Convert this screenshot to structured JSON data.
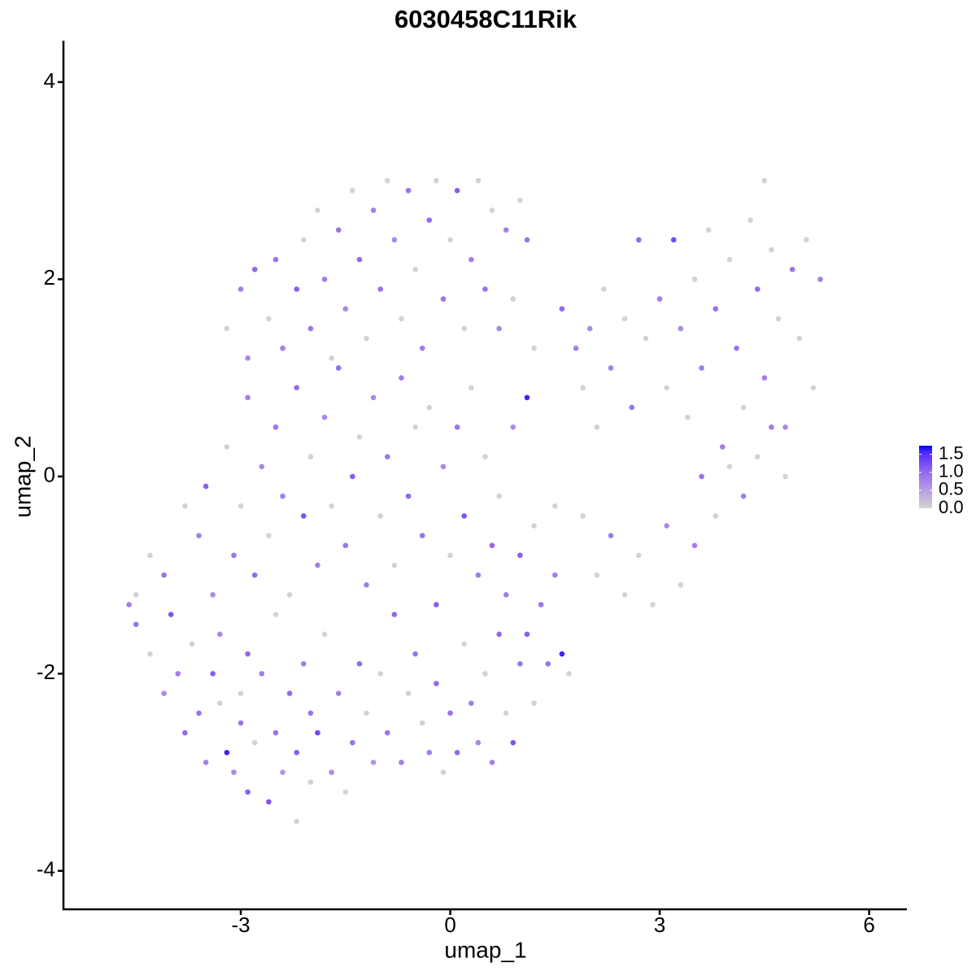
{
  "chart_data": {
    "type": "scatter",
    "title": "6030458C11Rik",
    "x_label": "umap_1",
    "y_label": "umap_2",
    "xlim": [
      -5.54,
      6.54
    ],
    "ylim": [
      -4.39,
      4.42
    ],
    "xticks": [
      -3,
      0,
      3,
      6
    ],
    "yticks": [
      -4,
      -2,
      0,
      2,
      4
    ],
    "grid": false,
    "color_scale": {
      "low": "#d3d3d3",
      "high": "#0000ff",
      "lim": [
        0,
        1.74
      ],
      "ticks": [
        {
          "value": 0,
          "label": "0.0"
        },
        0.5,
        {
          "value": 1,
          "label": "1.0"
        },
        1.5
      ]
    },
    "x": [
      -4.6,
      -4.5,
      -4.5,
      -4.3,
      -4.1,
      -4.0,
      -3.9,
      -3.8,
      -3.7,
      -3.6,
      -3.5,
      -3.4,
      -3.3,
      -3.3,
      -3.2,
      -3.1,
      -3.0,
      -3.0,
      -2.9,
      -2.9,
      -2.8,
      -2.7,
      -2.6,
      -2.5,
      -2.5,
      -2.4,
      -2.3,
      -2.2,
      -2.2,
      -2.1,
      -2.0,
      -2.0,
      -1.9,
      -1.8,
      -1.7,
      -1.6,
      -1.5,
      -1.4,
      -1.3,
      -1.2,
      -1.1,
      -1.0,
      -0.9,
      -0.8,
      -0.7,
      -0.6,
      -0.5,
      -0.4,
      -0.3,
      -0.2,
      -0.1,
      0.0,
      0.1,
      0.2,
      0.3,
      0.4,
      0.5,
      0.6,
      0.7,
      0.8,
      0.9,
      1.0,
      1.1,
      1.2,
      1.4,
      1.6,
      1.7,
      -4.3,
      -4.1,
      -3.8,
      -3.6,
      -3.5,
      -3.4,
      -3.2,
      -3.1,
      -3.0,
      -2.9,
      -2.8,
      -2.7,
      -2.6,
      -2.5,
      -2.4,
      -2.3,
      -2.2,
      -2.1,
      -2.0,
      -1.9,
      -1.8,
      -1.7,
      -1.6,
      -1.5,
      -1.4,
      -1.3,
      -1.2,
      -1.1,
      -1.0,
      -0.9,
      -0.8,
      -0.7,
      -0.6,
      -0.5,
      -0.4,
      -0.3,
      -0.2,
      -0.1,
      0.0,
      0.1,
      0.2,
      0.3,
      0.4,
      0.5,
      0.6,
      0.7,
      0.8,
      0.9,
      1.0,
      1.1,
      1.2,
      1.3,
      1.5,
      1.5,
      -3.2,
      -3.0,
      -2.9,
      -2.8,
      -2.6,
      -2.5,
      -2.4,
      -2.2,
      -2.1,
      -2.0,
      -1.9,
      -1.8,
      -1.7,
      -1.6,
      -1.5,
      -1.4,
      -1.3,
      -1.2,
      -1.1,
      -1.0,
      -0.9,
      -0.8,
      -0.7,
      -0.6,
      -0.5,
      -0.4,
      -0.3,
      -0.2,
      -0.1,
      0.0,
      0.1,
      0.2,
      0.3,
      0.4,
      0.5,
      0.6,
      0.7,
      0.8,
      0.9,
      1.0,
      1.1,
      1.2,
      1.6,
      1.8,
      1.9,
      2.0,
      2.1,
      2.2,
      2.3,
      2.5,
      2.6,
      2.7,
      2.8,
      3.0,
      3.1,
      3.2,
      3.3,
      3.4,
      3.5,
      3.6,
      3.7,
      3.8,
      3.9,
      4.0,
      4.1,
      4.2,
      4.3,
      4.4,
      4.5,
      4.5,
      4.6,
      4.7,
      4.8,
      4.9,
      5.0,
      5.1,
      5.2,
      5.3,
      1.9,
      2.1,
      2.3,
      2.5,
      2.7,
      2.9,
      3.1,
      3.3,
      3.5,
      3.6,
      3.8,
      4.0,
      4.2,
      4.4,
      4.6,
      4.8
    ],
    "y": [
      -1.3,
      -1.5,
      -1.2,
      -1.8,
      -2.2,
      -1.4,
      -2.0,
      -2.6,
      -1.7,
      -2.4,
      -2.9,
      -2.0,
      -2.3,
      -1.6,
      -2.8,
      -3.0,
      -2.2,
      -2.5,
      -1.8,
      -3.2,
      -2.7,
      -2.0,
      -3.3,
      -2.6,
      -1.4,
      -3.0,
      -2.2,
      -3.5,
      -2.8,
      -1.9,
      -3.1,
      -2.4,
      -2.6,
      -1.6,
      -3.0,
      -2.2,
      -3.2,
      -2.7,
      -1.9,
      -2.4,
      -2.9,
      -2.0,
      -2.6,
      -1.4,
      -2.9,
      -2.2,
      -1.8,
      -2.5,
      -2.8,
      -2.1,
      -3.0,
      -2.4,
      -2.8,
      -1.7,
      -2.3,
      -2.7,
      -2.0,
      -2.9,
      -1.6,
      -2.4,
      -2.7,
      -1.9,
      -1.6,
      -2.3,
      -1.9,
      -1.8,
      -2.0,
      -0.8,
      -1.0,
      -0.3,
      -0.6,
      -0.1,
      -1.2,
      0.3,
      -0.8,
      -0.3,
      0.8,
      -1.0,
      0.1,
      -0.6,
      0.5,
      -0.2,
      -1.2,
      0.9,
      -0.4,
      0.2,
      -0.9,
      0.6,
      -0.3,
      1.1,
      -0.7,
      0.0,
      0.4,
      -1.1,
      0.8,
      -0.4,
      0.2,
      -0.9,
      1.0,
      -0.2,
      0.5,
      -0.6,
      0.7,
      -1.3,
      0.1,
      -0.8,
      0.5,
      -0.4,
      0.9,
      -1.0,
      0.2,
      -0.7,
      -0.2,
      -1.2,
      0.5,
      -0.8,
      0.8,
      -0.5,
      -1.3,
      -0.3,
      -1.0,
      1.5,
      1.9,
      1.2,
      2.1,
      1.6,
      2.2,
      1.3,
      1.9,
      2.4,
      1.5,
      2.7,
      2.0,
      1.2,
      2.5,
      1.7,
      2.9,
      2.2,
      1.4,
      2.7,
      1.9,
      3.0,
      2.4,
      1.6,
      2.9,
      2.1,
      1.3,
      2.6,
      3.0,
      1.8,
      2.4,
      2.9,
      1.5,
      2.2,
      3.0,
      1.9,
      2.7,
      1.5,
      2.5,
      1.8,
      2.8,
      2.4,
      1.3,
      1.7,
      1.3,
      0.9,
      1.5,
      0.5,
      1.9,
      1.1,
      1.6,
      0.7,
      2.4,
      1.4,
      1.8,
      0.9,
      2.4,
      1.5,
      0.6,
      2.0,
      1.1,
      2.5,
      1.7,
      0.3,
      2.2,
      1.3,
      0.7,
      2.6,
      1.9,
      3.0,
      1.0,
      2.3,
      1.6,
      0.5,
      2.1,
      1.4,
      2.4,
      0.9,
      2.0,
      -0.4,
      -1.0,
      -0.6,
      -1.2,
      -0.8,
      -1.3,
      -0.5,
      -1.1,
      -0.7,
      0.0,
      -0.4,
      0.1,
      -0.2,
      0.2,
      0.5,
      0.0
    ],
    "expression": [
      0.8,
      0.9,
      0,
      0,
      0.7,
      1.2,
      0.8,
      1.0,
      0,
      0.9,
      0.8,
      1.1,
      0,
      0.7,
      1.6,
      0.7,
      0,
      0.9,
      1.0,
      1.1,
      0,
      0.8,
      1.2,
      0.9,
      0,
      0.6,
      1.0,
      0,
      1.1,
      0.8,
      0,
      0.9,
      1.3,
      0,
      0.7,
      0.8,
      0,
      0.9,
      1.0,
      0,
      0.6,
      0,
      0.9,
      1.0,
      0.8,
      0,
      0.9,
      0,
      0.8,
      1.0,
      0,
      0.9,
      1.0,
      0,
      0.8,
      0.7,
      0,
      0.8,
      1.0,
      0,
      1.2,
      0.9,
      1.1,
      0,
      0.9,
      1.6,
      0,
      0,
      0.9,
      0,
      0.8,
      1.1,
      0.7,
      0,
      0.9,
      0,
      0.8,
      1.0,
      0.7,
      0,
      0.9,
      0.8,
      0,
      1.0,
      1.2,
      0,
      0.8,
      0.7,
      0,
      1.0,
      0.9,
      1.1,
      0,
      0.8,
      0.7,
      0,
      0.9,
      0,
      0.8,
      1.0,
      0,
      0.9,
      0,
      1.1,
      0.7,
      0,
      0.9,
      1.2,
      0,
      0.8,
      0,
      1.0,
      0,
      0.8,
      0.7,
      1.1,
      1.6,
      0,
      0.9,
      0,
      0.8,
      0,
      0.8,
      0.7,
      1.0,
      0,
      0.9,
      0.8,
      1.1,
      0,
      0.9,
      0,
      0.8,
      0,
      0.9,
      0.7,
      0,
      1.0,
      0,
      0.8,
      0.9,
      0,
      0.7,
      0,
      0.9,
      0,
      0.8,
      1.0,
      0,
      0.9,
      0,
      1.1,
      0,
      0.8,
      0,
      0.9,
      0,
      0.7,
      0.8,
      0,
      0,
      0.9,
      0,
      1.0,
      0.8,
      0,
      0.7,
      0,
      0,
      0.8,
      0,
      0.9,
      1.0,
      0,
      0.8,
      0,
      1.3,
      0.7,
      0,
      0,
      0.8,
      0,
      0.9,
      0.8,
      0,
      0.9,
      0,
      0,
      1.0,
      0,
      0.8,
      0,
      0,
      0.7,
      0.9,
      0,
      0,
      0,
      0.8,
      0,
      0,
      0.8,
      0,
      0,
      0,
      0.7,
      0,
      0.8,
      0.9,
      0,
      0,
      0.8,
      0,
      0.8,
      0
    ]
  }
}
